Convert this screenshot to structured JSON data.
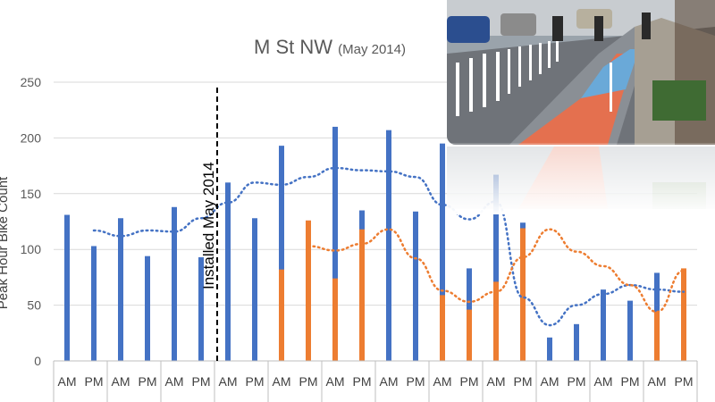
{
  "chart_data": {
    "type": "bar",
    "title": "M St NW",
    "subtitle": "(May 2014)",
    "ylabel": "Peak Hour Bike Count",
    "ylim": [
      0,
      250
    ],
    "yticks": [
      0,
      50,
      100,
      150,
      200,
      250
    ],
    "categories": [
      "AM",
      "PM",
      "AM",
      "PM",
      "AM",
      "PM",
      "AM",
      "PM",
      "AM",
      "PM",
      "AM",
      "PM",
      "AM",
      "PM",
      "AM",
      "PM",
      "AM",
      "PM",
      "AM",
      "PM",
      "AM",
      "PM",
      "AM",
      "PM"
    ],
    "series": [
      {
        "color": "#4472c4",
        "values": [
          131,
          103,
          128,
          94,
          138,
          93,
          160,
          128,
          193,
          124,
          210,
          135,
          207,
          134,
          195,
          83,
          167,
          124,
          21,
          33,
          64,
          54,
          79,
          48
        ]
      },
      {
        "color": "#ed7d31",
        "values": [
          null,
          null,
          null,
          null,
          null,
          null,
          null,
          null,
          82,
          126,
          74,
          118,
          null,
          null,
          59,
          46,
          71,
          119,
          null,
          null,
          null,
          null,
          44,
          83
        ]
      }
    ],
    "trendlines": [
      {
        "color": "#4472c4",
        "style": "dotted",
        "values": [
          null,
          117,
          112,
          117,
          116,
          128,
          142,
          160,
          158,
          165,
          173,
          171,
          170,
          165,
          140,
          127,
          143,
          57,
          32,
          50,
          60,
          68,
          64,
          62
        ]
      },
      {
        "color": "#ed7d31",
        "style": "dotted",
        "values": [
          null,
          null,
          null,
          null,
          null,
          null,
          null,
          null,
          null,
          103,
          99,
          105,
          118,
          92,
          63,
          53,
          62,
          93,
          118,
          98,
          85,
          68,
          44,
          81
        ]
      }
    ],
    "annotation": {
      "text": "Installed May 2014",
      "after_category_index": 5
    },
    "grid": true
  }
}
